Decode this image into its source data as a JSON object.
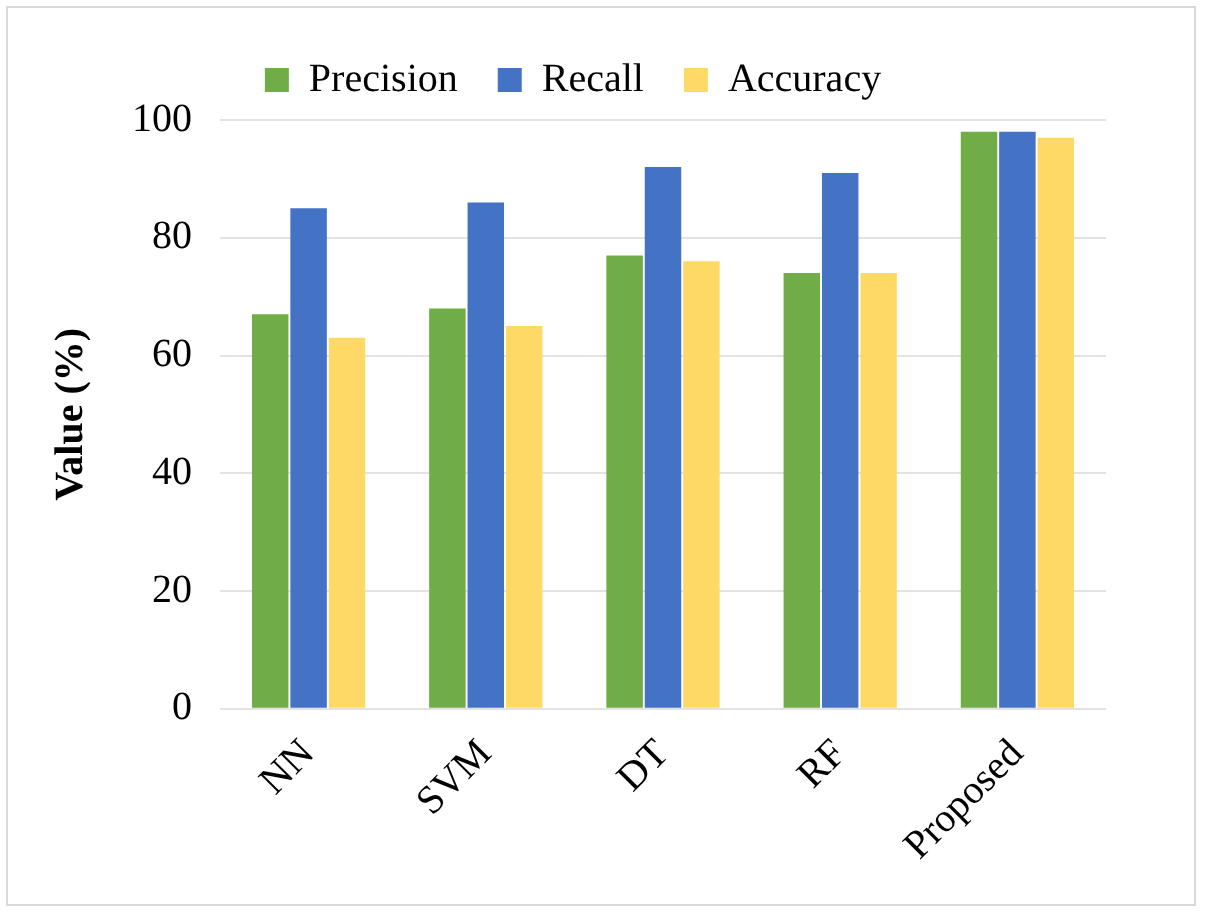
{
  "chart_data": {
    "type": "bar",
    "ylabel": "Value (%)",
    "categories": [
      "NN",
      "SVM",
      "DT",
      "RF",
      "Proposed"
    ],
    "series": [
      {
        "name": "Precision",
        "color": "#70ad47",
        "values": [
          67,
          68,
          77,
          74,
          98
        ]
      },
      {
        "name": "Recall",
        "color": "#4472c4",
        "values": [
          85,
          86,
          92,
          91,
          98
        ]
      },
      {
        "name": "Accuracy",
        "color": "#ffd966",
        "values": [
          63,
          65,
          76,
          74,
          97
        ]
      }
    ],
    "ylim": [
      0,
      100
    ],
    "yticks": [
      0,
      20,
      40,
      60,
      80,
      100
    ],
    "grid": "y",
    "legend": "top"
  }
}
